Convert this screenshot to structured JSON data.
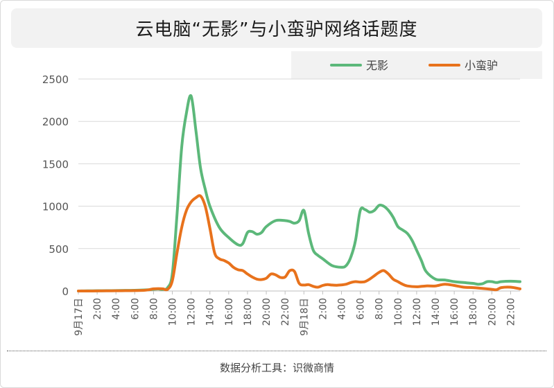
{
  "title": "云电脑“无影”与小蛮驴网络话题度",
  "source": "数据分析工具：识微商情",
  "colors": {
    "wuying": "#5cb87a",
    "xiaomanlv": "#e8721c",
    "grid": "#d9d9d9",
    "axis": "#bfbfbf"
  },
  "chart_data": {
    "type": "line",
    "title": "云电脑“无影”与小蛮驴网络话题度",
    "xlabel": "",
    "ylabel": "",
    "ylim": [
      0,
      2500
    ],
    "yticks": [
      0,
      500,
      1000,
      1500,
      2000,
      2500
    ],
    "x_tick_labels": [
      "9月17日",
      "2:00",
      "4:00",
      "6:00",
      "8:00",
      "10:00",
      "12:00",
      "14:00",
      "16:00",
      "18:00",
      "20:00",
      "22:00",
      "9月18日",
      "2:00",
      "4:00",
      "6:00",
      "8:00",
      "10:00",
      "12:00",
      "14:00",
      "16:00",
      "18:00",
      "20:00",
      "22:00"
    ],
    "x_hours": [
      0,
      2,
      4,
      6,
      8,
      10,
      12,
      14,
      16,
      18,
      20,
      22,
      24,
      26,
      28,
      30,
      32,
      34,
      36,
      38,
      40,
      42,
      44,
      46
    ],
    "legend_position": "top-right",
    "grid": true,
    "series": [
      {
        "name": "无影",
        "color": "#5cb87a",
        "x": [
          0,
          1,
          2,
          3,
          4,
          5,
          6,
          7,
          7.5,
          8,
          8.5,
          9,
          9.5,
          10,
          10.5,
          11,
          11.5,
          12,
          12.5,
          13,
          13.5,
          14,
          15,
          16,
          17,
          17.5,
          18,
          18.5,
          19,
          19.5,
          20,
          21,
          22,
          22.5,
          23,
          23.5,
          24,
          24.5,
          25,
          25.5,
          26,
          27,
          28,
          28.5,
          29,
          29.5,
          30,
          30.5,
          31,
          31.5,
          32,
          32.5,
          33,
          33.5,
          34,
          34.5,
          35,
          35.5,
          36,
          36.5,
          37,
          38,
          39,
          40,
          41,
          42,
          42.5,
          43,
          43.5,
          44,
          44.5,
          45,
          46,
          47
        ],
        "y": [
          0,
          2,
          3,
          4,
          5,
          7,
          8,
          12,
          15,
          20,
          24,
          18,
          40,
          200,
          900,
          1700,
          2100,
          2300,
          1900,
          1450,
          1200,
          1000,
          750,
          630,
          545,
          560,
          690,
          700,
          670,
          690,
          760,
          830,
          830,
          820,
          800,
          830,
          950,
          680,
          480,
          420,
          380,
          300,
          280,
          300,
          400,
          600,
          950,
          960,
          930,
          950,
          1010,
          1000,
          950,
          870,
          760,
          720,
          680,
          600,
          480,
          360,
          230,
          140,
          130,
          110,
          100,
          90,
          80,
          85,
          110,
          110,
          100,
          110,
          115,
          110
        ]
      },
      {
        "name": "小蛮驴",
        "color": "#e8721c",
        "x": [
          0,
          1,
          2,
          3,
          4,
          5,
          6,
          7,
          7.5,
          8,
          8.5,
          9,
          9.5,
          10,
          10.5,
          11,
          11.5,
          12,
          12.5,
          13,
          13.5,
          14,
          14.5,
          15,
          15.5,
          16,
          16.5,
          17,
          17.5,
          18,
          18.5,
          19,
          19.5,
          20,
          20.5,
          21,
          21.5,
          22,
          22.5,
          23,
          23.5,
          24,
          24.5,
          25,
          25.5,
          26,
          26.5,
          27,
          27.5,
          28,
          28.5,
          29,
          29.5,
          30,
          30.5,
          31,
          31.5,
          32,
          32.5,
          33,
          33.5,
          34,
          34.5,
          35,
          36,
          37,
          38,
          39,
          40,
          41,
          42,
          43,
          44,
          44.5,
          45,
          46,
          47
        ],
        "y": [
          0,
          0,
          1,
          2,
          3,
          4,
          5,
          8,
          15,
          25,
          28,
          25,
          20,
          120,
          450,
          750,
          950,
          1050,
          1100,
          1120,
          1000,
          740,
          450,
          380,
          360,
          330,
          280,
          250,
          240,
          200,
          165,
          140,
          135,
          150,
          200,
          190,
          160,
          165,
          240,
          230,
          90,
          70,
          75,
          55,
          45,
          65,
          75,
          70,
          68,
          72,
          80,
          100,
          110,
          105,
          110,
          140,
          180,
          220,
          240,
          200,
          140,
          110,
          80,
          60,
          50,
          60,
          60,
          80,
          65,
          45,
          40,
          30,
          20,
          15,
          40,
          45,
          25
        ]
      }
    ]
  }
}
